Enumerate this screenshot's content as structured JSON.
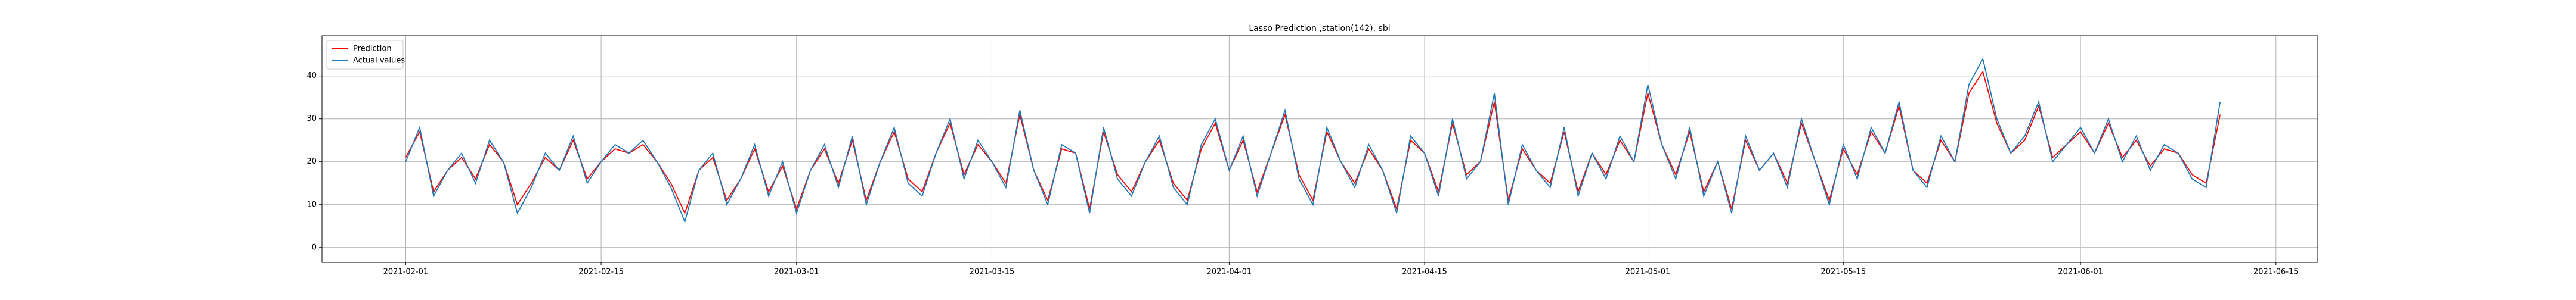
{
  "chart_data": {
    "type": "line",
    "title": "Lasso Prediction ,station(142), sbi",
    "x": [
      "2021-02-01",
      "2021-02-02",
      "2021-02-03",
      "2021-02-04",
      "2021-02-05",
      "2021-02-06",
      "2021-02-07",
      "2021-02-08",
      "2021-02-09",
      "2021-02-10",
      "2021-02-11",
      "2021-02-12",
      "2021-02-13",
      "2021-02-14",
      "2021-02-15",
      "2021-02-16",
      "2021-02-17",
      "2021-02-18",
      "2021-02-19",
      "2021-02-20",
      "2021-02-21",
      "2021-02-22",
      "2021-02-23",
      "2021-02-24",
      "2021-02-25",
      "2021-02-26",
      "2021-02-27",
      "2021-02-28",
      "2021-03-01",
      "2021-03-02",
      "2021-03-03",
      "2021-03-04",
      "2021-03-05",
      "2021-03-06",
      "2021-03-07",
      "2021-03-08",
      "2021-03-09",
      "2021-03-10",
      "2021-03-11",
      "2021-03-12",
      "2021-03-13",
      "2021-03-14",
      "2021-03-15",
      "2021-03-16",
      "2021-03-17",
      "2021-03-18",
      "2021-03-19",
      "2021-03-20",
      "2021-03-21",
      "2021-03-22",
      "2021-03-23",
      "2021-03-24",
      "2021-03-25",
      "2021-03-26",
      "2021-03-27",
      "2021-03-28",
      "2021-03-29",
      "2021-03-30",
      "2021-03-31",
      "2021-04-01",
      "2021-04-02",
      "2021-04-03",
      "2021-04-04",
      "2021-04-05",
      "2021-04-06",
      "2021-04-07",
      "2021-04-08",
      "2021-04-09",
      "2021-04-10",
      "2021-04-11",
      "2021-04-12",
      "2021-04-13",
      "2021-04-14",
      "2021-04-15",
      "2021-04-16",
      "2021-04-17",
      "2021-04-18",
      "2021-04-19",
      "2021-04-20",
      "2021-04-21",
      "2021-04-22",
      "2021-04-23",
      "2021-04-24",
      "2021-04-25",
      "2021-04-26",
      "2021-04-27",
      "2021-04-28",
      "2021-04-29",
      "2021-04-30",
      "2021-05-01",
      "2021-05-02",
      "2021-05-03",
      "2021-05-04",
      "2021-05-05",
      "2021-05-06",
      "2021-05-07",
      "2021-05-08",
      "2021-05-09",
      "2021-05-10",
      "2021-05-11",
      "2021-05-12",
      "2021-05-13",
      "2021-05-14",
      "2021-05-15",
      "2021-05-16",
      "2021-05-17",
      "2021-05-18",
      "2021-05-19",
      "2021-05-20",
      "2021-05-21",
      "2021-05-22",
      "2021-05-23",
      "2021-05-24",
      "2021-05-25",
      "2021-05-26",
      "2021-05-27",
      "2021-05-28",
      "2021-05-29",
      "2021-05-30",
      "2021-05-31",
      "2021-06-01",
      "2021-06-02",
      "2021-06-03",
      "2021-06-04",
      "2021-06-05",
      "2021-06-06",
      "2021-06-07",
      "2021-06-08",
      "2021-06-09",
      "2021-06-10",
      "2021-06-11"
    ],
    "series": [
      {
        "name": "Prediction",
        "color": "#ff0000",
        "values": [
          21,
          27,
          13,
          18,
          21,
          16,
          24,
          20,
          10,
          15,
          21,
          18,
          25,
          16,
          20,
          23,
          22,
          24,
          20,
          15,
          8,
          18,
          21,
          11,
          16,
          23,
          13,
          19,
          9,
          18,
          23,
          15,
          25,
          11,
          20,
          27,
          16,
          13,
          22,
          29,
          17,
          24,
          20,
          15,
          31,
          18,
          11,
          23,
          22,
          9,
          27,
          17,
          13,
          20,
          25,
          15,
          11,
          23,
          29,
          18,
          25,
          13,
          22,
          31,
          17,
          11,
          27,
          20,
          15,
          23,
          18,
          9,
          25,
          22,
          13,
          29,
          17,
          20,
          34,
          11,
          23,
          18,
          15,
          27,
          13,
          22,
          17,
          25,
          20,
          36,
          24,
          17,
          27,
          13,
          20,
          9,
          25,
          18,
          22,
          15,
          29,
          20,
          11,
          23,
          17,
          27,
          22,
          33,
          18,
          15,
          25,
          20,
          36,
          41,
          29,
          22,
          25,
          33,
          21,
          24,
          27,
          22,
          29,
          21,
          25,
          19,
          23,
          22,
          17,
          15,
          31
        ]
      },
      {
        "name": "Actual values",
        "color": "#1f77b4",
        "values": [
          20,
          28,
          12,
          18,
          22,
          15,
          25,
          20,
          8,
          14,
          22,
          18,
          26,
          15,
          20,
          24,
          22,
          25,
          20,
          14,
          6,
          18,
          22,
          10,
          16,
          24,
          12,
          20,
          8,
          18,
          24,
          14,
          26,
          10,
          20,
          28,
          15,
          12,
          22,
          30,
          16,
          25,
          20,
          14,
          32,
          18,
          10,
          24,
          22,
          8,
          28,
          16,
          12,
          20,
          26,
          14,
          10,
          24,
          30,
          18,
          26,
          12,
          22,
          32,
          16,
          10,
          28,
          20,
          14,
          24,
          18,
          8,
          26,
          22,
          12,
          30,
          16,
          20,
          36,
          10,
          24,
          18,
          14,
          28,
          12,
          22,
          16,
          26,
          20,
          38,
          24,
          16,
          28,
          12,
          20,
          8,
          26,
          18,
          22,
          14,
          30,
          20,
          10,
          24,
          16,
          28,
          22,
          34,
          18,
          14,
          26,
          20,
          38,
          44,
          30,
          22,
          26,
          34,
          20,
          24,
          28,
          22,
          30,
          20,
          26,
          18,
          24,
          22,
          16,
          14,
          34
        ]
      }
    ],
    "xlim": [
      "2021-01-26",
      "2021-06-18"
    ],
    "xticks": [
      "2021-02-01",
      "2021-02-15",
      "2021-03-01",
      "2021-03-15",
      "2021-04-01",
      "2021-04-15",
      "2021-05-01",
      "2021-05-15",
      "2021-06-01",
      "2021-06-15"
    ],
    "ylim": [
      -3.5,
      49.4
    ],
    "yticks": [
      0,
      10,
      20,
      30,
      40
    ],
    "grid": true,
    "legend": "upper left"
  }
}
